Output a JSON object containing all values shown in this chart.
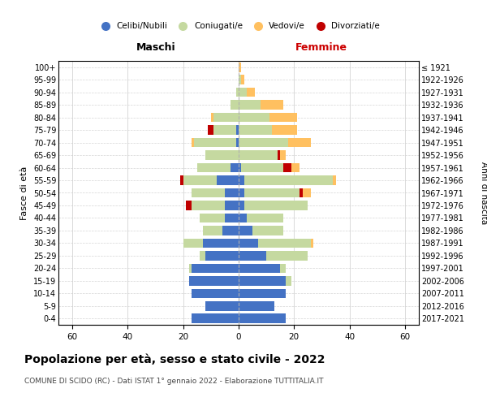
{
  "age_groups": [
    "0-4",
    "5-9",
    "10-14",
    "15-19",
    "20-24",
    "25-29",
    "30-34",
    "35-39",
    "40-44",
    "45-49",
    "50-54",
    "55-59",
    "60-64",
    "65-69",
    "70-74",
    "75-79",
    "80-84",
    "85-89",
    "90-94",
    "95-99",
    "100+"
  ],
  "birth_years": [
    "2017-2021",
    "2012-2016",
    "2007-2011",
    "2002-2006",
    "1997-2001",
    "1992-1996",
    "1987-1991",
    "1982-1986",
    "1977-1981",
    "1972-1976",
    "1967-1971",
    "1962-1966",
    "1957-1961",
    "1952-1956",
    "1947-1951",
    "1942-1946",
    "1937-1941",
    "1932-1936",
    "1927-1931",
    "1922-1926",
    "≤ 1921"
  ],
  "males": {
    "celibi": [
      17,
      12,
      17,
      18,
      17,
      12,
      13,
      6,
      5,
      5,
      5,
      8,
      3,
      0,
      1,
      1,
      0,
      0,
      0,
      0,
      0
    ],
    "coniugati": [
      0,
      0,
      0,
      0,
      1,
      2,
      7,
      7,
      9,
      12,
      12,
      12,
      12,
      12,
      15,
      8,
      9,
      3,
      1,
      0,
      0
    ],
    "vedovi": [
      0,
      0,
      0,
      0,
      0,
      0,
      0,
      0,
      0,
      0,
      0,
      0,
      0,
      0,
      1,
      0,
      1,
      0,
      0,
      0,
      0
    ],
    "divorziati": [
      0,
      0,
      0,
      0,
      0,
      0,
      0,
      0,
      0,
      2,
      0,
      1,
      0,
      0,
      0,
      2,
      0,
      0,
      0,
      0,
      0
    ]
  },
  "females": {
    "nubili": [
      17,
      13,
      17,
      17,
      15,
      10,
      7,
      5,
      3,
      2,
      2,
      2,
      1,
      0,
      0,
      0,
      0,
      0,
      0,
      0,
      0
    ],
    "coniugate": [
      0,
      0,
      0,
      2,
      2,
      15,
      19,
      11,
      13,
      23,
      20,
      32,
      15,
      14,
      18,
      12,
      11,
      8,
      3,
      1,
      0
    ],
    "vedove": [
      0,
      0,
      0,
      0,
      0,
      0,
      1,
      0,
      0,
      0,
      3,
      1,
      3,
      2,
      8,
      9,
      10,
      8,
      3,
      1,
      1
    ],
    "divorziate": [
      0,
      0,
      0,
      0,
      0,
      0,
      0,
      0,
      0,
      0,
      1,
      0,
      3,
      1,
      0,
      0,
      0,
      0,
      0,
      0,
      0
    ]
  },
  "colors": {
    "celibi": "#4472c4",
    "coniugati": "#c5d9a0",
    "vedovi": "#ffc060",
    "divorziati": "#c00000"
  },
  "xlim": 65,
  "title": "Popolazione per età, sesso e stato civile - 2022",
  "subtitle": "COMUNE DI SCIDO (RC) - Dati ISTAT 1° gennaio 2022 - Elaborazione TUTTITALIA.IT",
  "ylabel_left": "Fasce di età",
  "ylabel_right": "Anni di nascita",
  "xlabel_left": "Maschi",
  "xlabel_right": "Femmine"
}
